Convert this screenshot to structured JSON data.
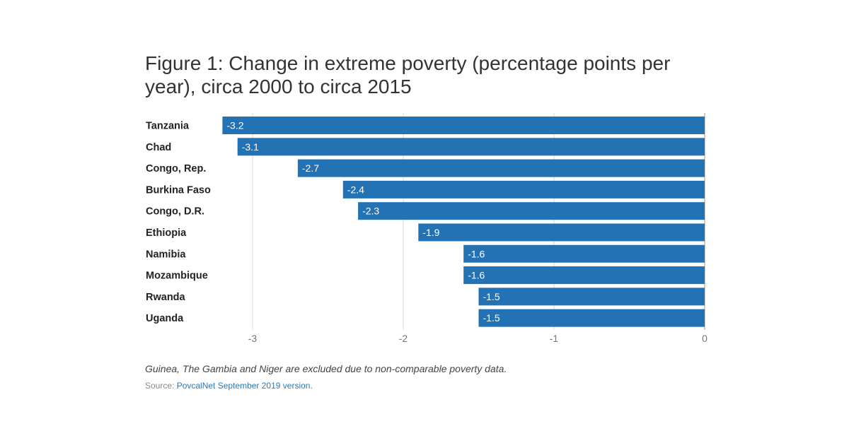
{
  "title": "Figure 1: Change in extreme poverty (percentage points per year), circa 2000 to circa 2015",
  "note": "Guinea, The Gambia and Niger are excluded due to non-comparable poverty data.",
  "source": {
    "prefix": "Source: ",
    "link_text": "PovcalNet September 2019 version."
  },
  "colors": {
    "bar": "#2272b4",
    "grid": "#d9d9d9",
    "axis": "#999999"
  },
  "chart_data": {
    "type": "bar",
    "orientation": "horizontal",
    "title": "Figure 1: Change in extreme poverty (percentage points per year), circa 2000 to circa 2015",
    "categories": [
      "Tanzania",
      "Chad",
      "Congo, Rep.",
      "Burkina Faso",
      "Congo, D.R.",
      "Ethiopia",
      "Namibia",
      "Mozambique",
      "Rwanda",
      "Uganda"
    ],
    "values": [
      -3.2,
      -3.1,
      -2.7,
      -2.4,
      -2.3,
      -1.9,
      -1.6,
      -1.6,
      -1.5,
      -1.5
    ],
    "value_labels": [
      "-3.2",
      "-3.1",
      "-2.7",
      "-2.4",
      "-2.3",
      "-1.9",
      "-1.6",
      "-1.6",
      "-1.5",
      "-1.5"
    ],
    "xlim": [
      -3.3,
      0
    ],
    "xticks": [
      -3,
      -2,
      -1,
      0
    ],
    "xtick_labels": [
      "-3",
      "-2",
      "-1",
      "0"
    ],
    "xlabel": "",
    "ylabel": "",
    "grid": true,
    "legend": false
  }
}
